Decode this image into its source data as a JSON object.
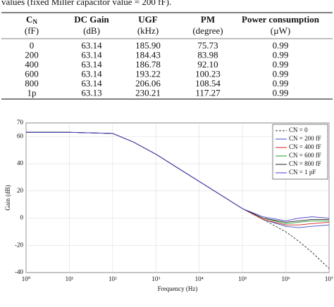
{
  "caption": "values (fixed Miller capacitor value = 200 fF).",
  "table": {
    "header": [
      {
        "main": "C",
        "sub": "N"
      },
      "DC Gain",
      "UGF",
      "PM",
      "Power consumption"
    ],
    "units": [
      "(fF)",
      "(dB)",
      "(kHz)",
      "(degree)",
      "(µW)"
    ],
    "rows": [
      [
        "0",
        "63.14",
        "185.90",
        "75.73",
        "0.99"
      ],
      [
        "200",
        "63.14",
        "184.43",
        "83.98",
        "0.99"
      ],
      [
        "400",
        "63.14",
        "186.78",
        "92.10",
        "0.99"
      ],
      [
        "600",
        "63.14",
        "193.22",
        "100.23",
        "0.99"
      ],
      [
        "800",
        "63.14",
        "206.06",
        "108.54",
        "0.99"
      ],
      [
        "1p",
        "63.13",
        "230.21",
        "117.27",
        "0.99"
      ]
    ]
  },
  "chart_data": {
    "type": "line",
    "xlabel": "Frequency (Hz)",
    "ylabel": "Gain (dB)",
    "xscale": "log",
    "grid": true,
    "legend": "upper right",
    "x": [
      1,
      10,
      100,
      300,
      1000,
      10000,
      100000,
      300000,
      1000000,
      2000000,
      4000000,
      10000000
    ],
    "xlim": [
      1,
      10000000
    ],
    "xticks": [
      {
        "value": 1,
        "label": "10⁰"
      },
      {
        "value": 10,
        "label": "10¹"
      },
      {
        "value": 100,
        "label": "10²"
      },
      {
        "value": 1000,
        "label": "10³"
      },
      {
        "value": 10000,
        "label": "10⁴"
      },
      {
        "value": 100000,
        "label": "10⁵"
      },
      {
        "value": 1000000,
        "label": "10⁶"
      },
      {
        "value": 10000000,
        "label": "10⁷"
      }
    ],
    "ylim": [
      -40,
      70
    ],
    "yticks": [
      -40,
      -20,
      0,
      20,
      40,
      60,
      70
    ],
    "series": [
      {
        "name": "CN = 0",
        "color": "#333333",
        "dashed": true,
        "values": [
          63.14,
          63.1,
          62.3,
          56,
          47,
          27,
          7,
          -1,
          -10,
          -17,
          -25,
          -37
        ]
      },
      {
        "name": "CN = 200 fF",
        "color": "#3b4fc8",
        "values": [
          63.14,
          63.1,
          62.3,
          56,
          47,
          27,
          7,
          -1,
          -6,
          -7,
          -6,
          -5
        ]
      },
      {
        "name": "CN = 400 fF",
        "color": "#d62020",
        "values": [
          63.14,
          63.1,
          62.3,
          56,
          47,
          27,
          7,
          -1,
          -5,
          -5,
          -4,
          -3
        ]
      },
      {
        "name": "CN = 600 fF",
        "color": "#1f9d2a",
        "values": [
          63.14,
          63.1,
          62.3,
          56,
          47,
          27,
          7,
          0,
          -4,
          -3,
          -2,
          -2
        ]
      },
      {
        "name": "CN = 800 fF",
        "color": "#222222",
        "values": [
          63.14,
          63.1,
          62.3,
          56,
          47,
          27,
          7,
          0,
          -3,
          -2,
          -1,
          -1
        ]
      },
      {
        "name": "CN = 1 pF",
        "color": "#4a3fd0",
        "values": [
          63.13,
          63.1,
          62.3,
          56,
          47,
          27,
          7,
          1,
          -2,
          0,
          1,
          0
        ]
      }
    ]
  }
}
